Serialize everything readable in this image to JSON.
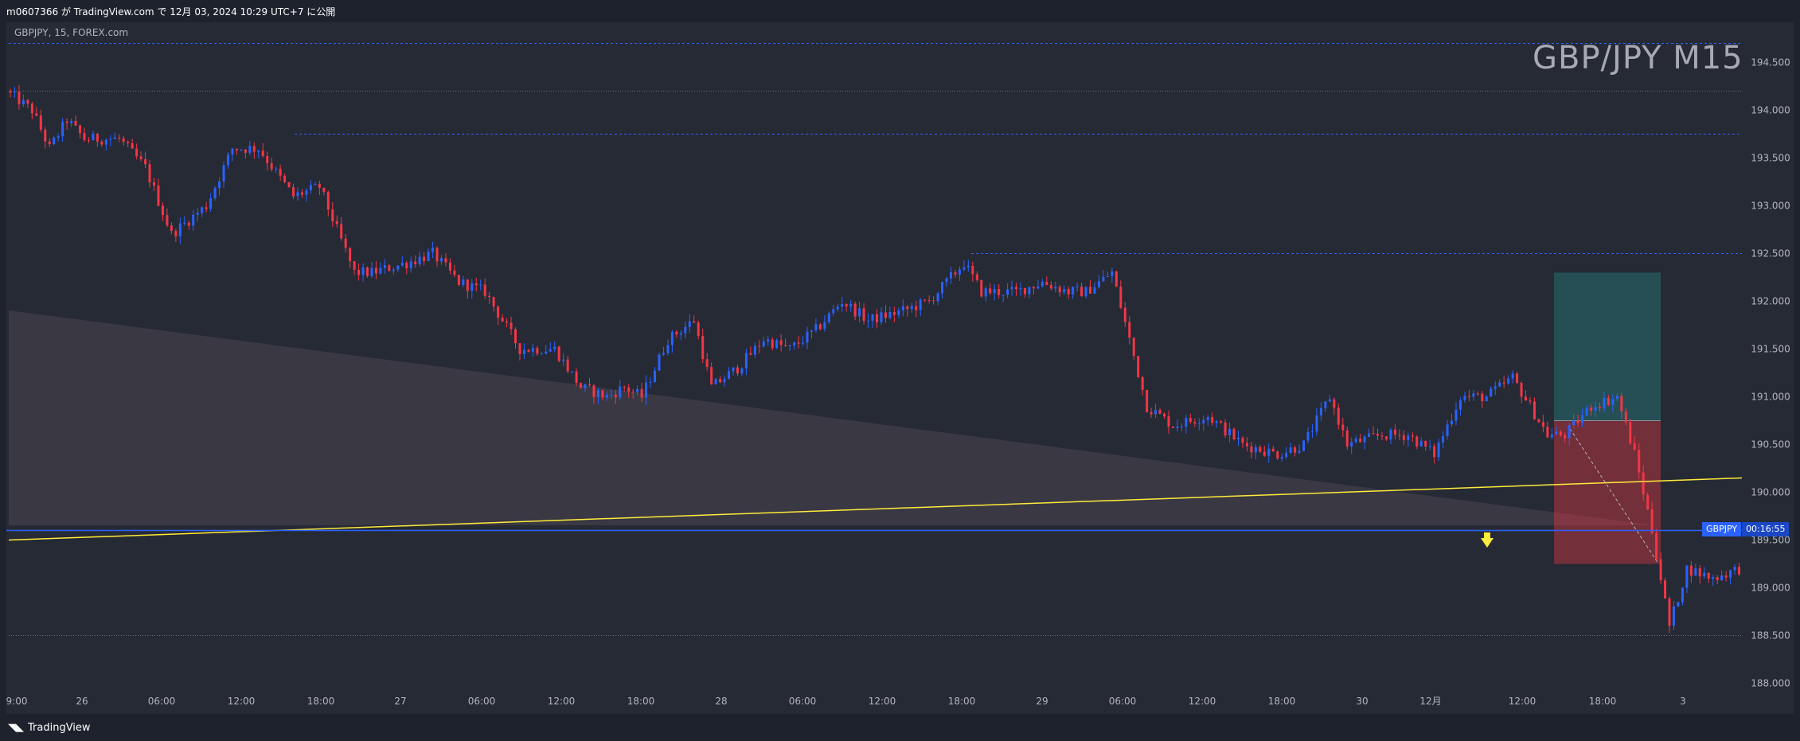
{
  "header": {
    "publish_info": "m0607366 が TradingView.com で 12月 03, 2024 10:29 UTC+7 に公開"
  },
  "chart": {
    "symbol_info": "GBPJPY, 15, FOREX.com",
    "watermark": "GBP/JPY M15",
    "price_tag_symbol": "GBPJPY",
    "price_tag_countdown": "00:16:55"
  },
  "footer": {
    "brand": "TradingView",
    "logo_icon": "tradingview-logo-icon"
  },
  "colors": {
    "background": "#262a35",
    "up_candle": "#2962ff",
    "down_candle": "#f23645",
    "trendline": "#ffeb3b",
    "price_line": "#2962ff",
    "target_zone": "#26a69a",
    "stop_zone": "#f23645",
    "cloud": "#4a434f"
  },
  "chart_data": {
    "type": "candlestick",
    "symbol": "GBPJPY",
    "timeframe": "15",
    "y_ticks": [
      "194.500",
      "194.000",
      "193.500",
      "193.000",
      "192.500",
      "192.000",
      "191.500",
      "191.000",
      "190.500",
      "190.000",
      "189.500",
      "189.000",
      "188.500",
      "188.000"
    ],
    "x_ticks": [
      "9:00",
      "26",
      "06:00",
      "12:00",
      "18:00",
      "27",
      "06:00",
      "12:00",
      "18:00",
      "28",
      "06:00",
      "12:00",
      "18:00",
      "29",
      "06:00",
      "12:00",
      "18:00",
      "30",
      "12月",
      "12:00",
      "18:00",
      "3"
    ],
    "ylim": [
      188.0,
      194.5
    ],
    "path": [
      [
        0,
        194.2
      ],
      [
        6,
        194.0
      ],
      [
        10,
        193.6
      ],
      [
        14,
        193.9
      ],
      [
        18,
        193.7
      ],
      [
        26,
        193.7
      ],
      [
        32,
        193.4
      ],
      [
        38,
        192.7
      ],
      [
        46,
        193.0
      ],
      [
        52,
        193.6
      ],
      [
        58,
        193.6
      ],
      [
        66,
        193.1
      ],
      [
        72,
        193.2
      ],
      [
        80,
        192.3
      ],
      [
        84,
        192.3
      ],
      [
        92,
        192.4
      ],
      [
        98,
        192.5
      ],
      [
        104,
        192.2
      ],
      [
        110,
        192.1
      ],
      [
        118,
        191.5
      ],
      [
        126,
        191.5
      ],
      [
        132,
        191.1
      ],
      [
        138,
        191.0
      ],
      [
        142,
        191.1
      ],
      [
        146,
        191.0
      ],
      [
        152,
        191.6
      ],
      [
        158,
        191.8
      ],
      [
        162,
        191.1
      ],
      [
        168,
        191.3
      ],
      [
        174,
        191.6
      ],
      [
        180,
        191.5
      ],
      [
        186,
        191.7
      ],
      [
        192,
        192.0
      ],
      [
        198,
        191.8
      ],
      [
        206,
        191.9
      ],
      [
        212,
        192.0
      ],
      [
        220,
        192.4
      ],
      [
        224,
        192.1
      ],
      [
        232,
        192.1
      ],
      [
        238,
        192.2
      ],
      [
        244,
        192.1
      ],
      [
        248,
        192.1
      ],
      [
        254,
        192.3
      ],
      [
        258,
        191.6
      ],
      [
        262,
        190.9
      ],
      [
        268,
        190.7
      ],
      [
        276,
        190.8
      ],
      [
        284,
        190.5
      ],
      [
        292,
        190.4
      ],
      [
        298,
        190.5
      ],
      [
        304,
        191.0
      ],
      [
        308,
        190.5
      ],
      [
        316,
        190.6
      ],
      [
        322,
        190.6
      ],
      [
        328,
        190.4
      ],
      [
        334,
        191.0
      ],
      [
        340,
        191.0
      ],
      [
        346,
        191.2
      ],
      [
        354,
        190.6
      ],
      [
        358,
        190.6
      ],
      [
        364,
        190.9
      ],
      [
        370,
        191.0
      ],
      [
        374,
        190.4
      ],
      [
        378,
        189.6
      ],
      [
        382,
        188.6
      ],
      [
        386,
        189.2
      ],
      [
        392,
        189.1
      ],
      [
        398,
        189.2
      ]
    ],
    "horizontal_levels": [
      194.7,
      194.2,
      193.75,
      192.5,
      188.5
    ],
    "current_price": 189.6,
    "trendline": {
      "from": [
        0,
        189.5
      ],
      "to": [
        398,
        190.15
      ]
    },
    "position_tool": {
      "target": 192.3,
      "entry": 190.75,
      "stop": 189.25
    }
  }
}
